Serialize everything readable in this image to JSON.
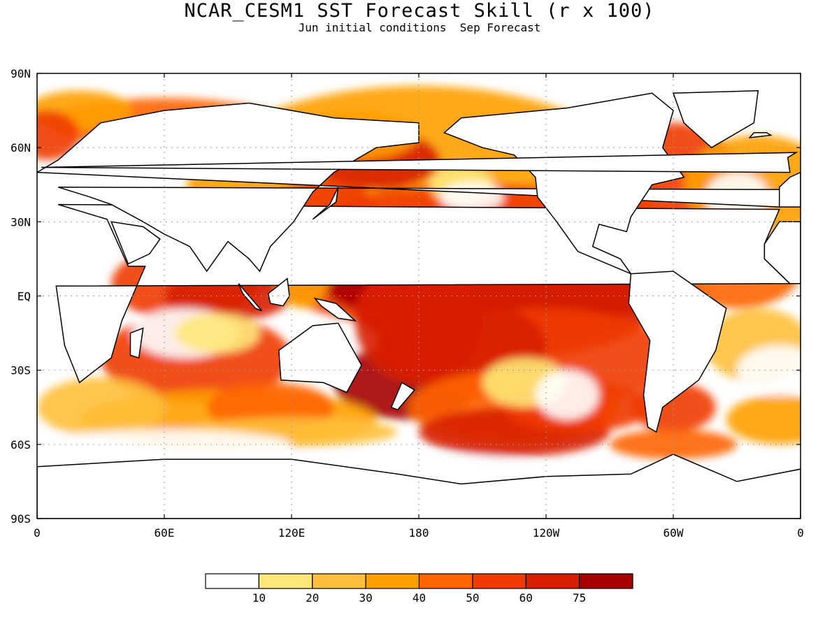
{
  "title": "NCAR_CESM1 SST Forecast Skill (r x 100)",
  "subtitle": "Jun initial conditions  Sep Forecast",
  "map": {
    "lat_labels": [
      "90N",
      "60N",
      "30N",
      "EQ",
      "30S",
      "60S",
      "90S"
    ],
    "lon_labels": [
      "0",
      "60E",
      "120E",
      "180",
      "120W",
      "60W",
      "0"
    ],
    "land_color": "#ffffff",
    "coastline_color": "#000000",
    "grid": "dotted"
  },
  "colorbar": {
    "colors": [
      "#ffffff",
      "#ffe878",
      "#ffc03c",
      "#ffa000",
      "#ff6400",
      "#f03c00",
      "#d71e00",
      "#a60000"
    ],
    "labels": [
      "10",
      "20",
      "30",
      "40",
      "50",
      "60",
      "75"
    ]
  }
}
